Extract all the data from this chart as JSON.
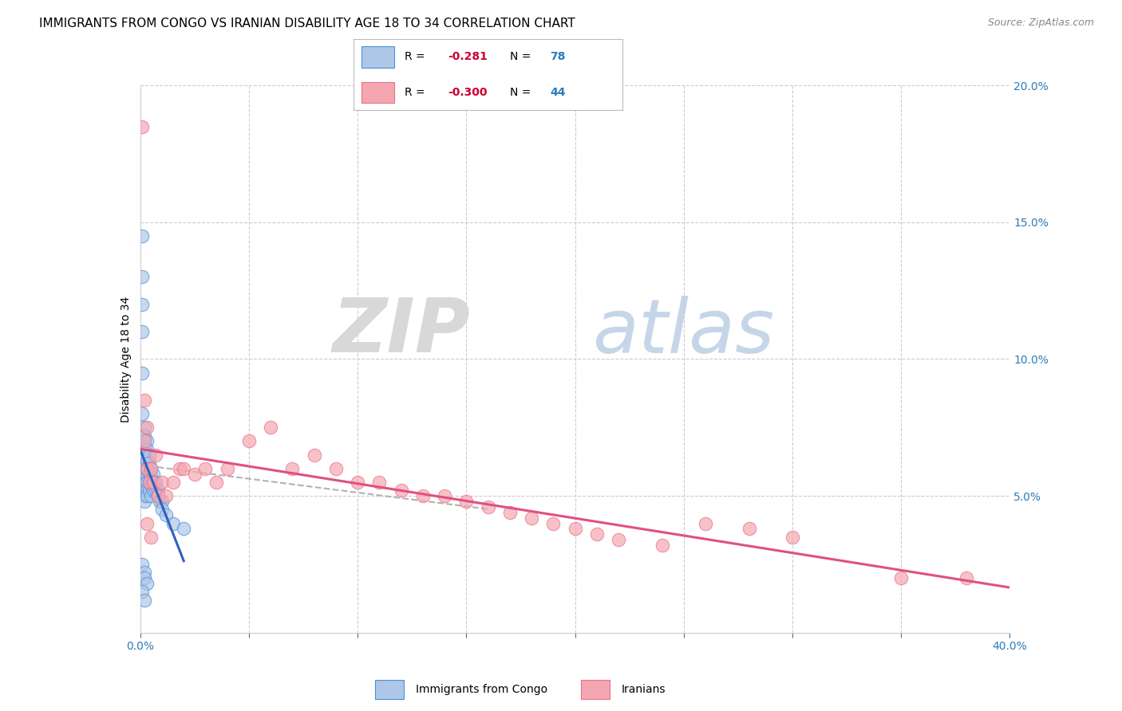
{
  "title": "IMMIGRANTS FROM CONGO VS IRANIAN DISABILITY AGE 18 TO 34 CORRELATION CHART",
  "source": "Source: ZipAtlas.com",
  "ylabel": "Disability Age 18 to 34",
  "xlim": [
    0.0,
    0.4
  ],
  "ylim": [
    0.0,
    0.2
  ],
  "xticks": [
    0.0,
    0.05,
    0.1,
    0.15,
    0.2,
    0.25,
    0.3,
    0.35,
    0.4
  ],
  "xticklabels": [
    "0.0%",
    "",
    "",
    "",
    "",
    "",
    "",
    "",
    "40.0%"
  ],
  "yticks_right": [
    0.05,
    0.1,
    0.15,
    0.2
  ],
  "yticklabels_right": [
    "5.0%",
    "10.0%",
    "15.0%",
    "20.0%"
  ],
  "legend_label1": "Immigrants from Congo",
  "legend_label2": "Iranians",
  "blue_fill": "#aec6e8",
  "blue_edge": "#4a90d9",
  "pink_fill": "#f4a7b0",
  "pink_edge": "#e8708a",
  "blue_line": "#3060c0",
  "pink_line": "#e05080",
  "dash_line": "#aaaaaa",
  "congo_x": [
    0.001,
    0.001,
    0.001,
    0.001,
    0.001,
    0.001,
    0.002,
    0.002,
    0.002,
    0.002,
    0.002,
    0.002,
    0.002,
    0.002,
    0.002,
    0.002,
    0.003,
    0.003,
    0.003,
    0.003,
    0.003,
    0.003,
    0.003,
    0.003,
    0.004,
    0.004,
    0.004,
    0.004,
    0.004,
    0.005,
    0.005,
    0.005,
    0.005,
    0.006,
    0.006,
    0.006,
    0.007,
    0.007,
    0.008,
    0.008,
    0.009,
    0.01,
    0.01,
    0.012,
    0.015,
    0.02,
    0.001,
    0.002,
    0.002,
    0.003,
    0.001,
    0.002
  ],
  "congo_y": [
    0.145,
    0.13,
    0.12,
    0.11,
    0.095,
    0.08,
    0.075,
    0.072,
    0.068,
    0.065,
    0.06,
    0.058,
    0.055,
    0.052,
    0.05,
    0.048,
    0.07,
    0.067,
    0.063,
    0.06,
    0.057,
    0.055,
    0.052,
    0.05,
    0.065,
    0.062,
    0.058,
    0.055,
    0.052,
    0.06,
    0.057,
    0.054,
    0.05,
    0.058,
    0.055,
    0.052,
    0.055,
    0.052,
    0.052,
    0.05,
    0.048,
    0.048,
    0.045,
    0.043,
    0.04,
    0.038,
    0.025,
    0.022,
    0.02,
    0.018,
    0.015,
    0.012
  ],
  "iranian_x": [
    0.001,
    0.002,
    0.002,
    0.003,
    0.003,
    0.004,
    0.005,
    0.006,
    0.007,
    0.008,
    0.01,
    0.012,
    0.015,
    0.018,
    0.02,
    0.025,
    0.03,
    0.035,
    0.04,
    0.05,
    0.06,
    0.07,
    0.08,
    0.09,
    0.1,
    0.11,
    0.12,
    0.13,
    0.14,
    0.15,
    0.16,
    0.17,
    0.18,
    0.19,
    0.2,
    0.21,
    0.22,
    0.24,
    0.26,
    0.28,
    0.3,
    0.35,
    0.38,
    0.003,
    0.005
  ],
  "iranian_y": [
    0.185,
    0.085,
    0.07,
    0.075,
    0.06,
    0.055,
    0.06,
    0.055,
    0.065,
    0.05,
    0.055,
    0.05,
    0.055,
    0.06,
    0.06,
    0.058,
    0.06,
    0.055,
    0.06,
    0.07,
    0.075,
    0.06,
    0.065,
    0.06,
    0.055,
    0.055,
    0.052,
    0.05,
    0.05,
    0.048,
    0.046,
    0.044,
    0.042,
    0.04,
    0.038,
    0.036,
    0.034,
    0.032,
    0.04,
    0.038,
    0.035,
    0.02,
    0.02,
    0.04,
    0.035
  ],
  "title_fontsize": 11,
  "axis_label_fontsize": 10,
  "tick_fontsize": 10,
  "source_fontsize": 9,
  "legend_r_color": "#cc0044"
}
